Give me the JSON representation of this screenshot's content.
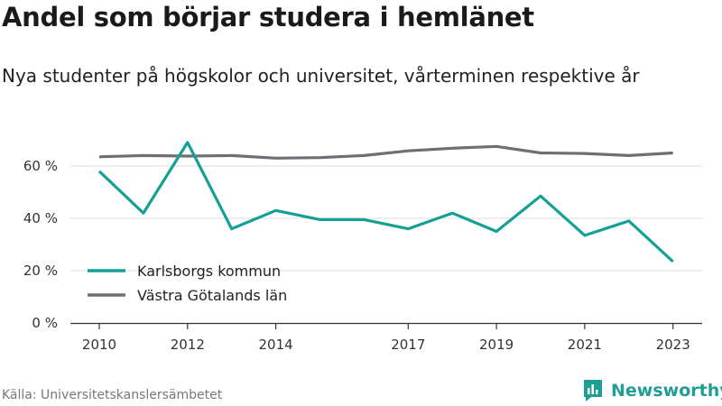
{
  "title": "Andel som börjar studera i hemlänet",
  "subtitle": "Nya studenter på högskolor och universitet, vårterminen respektive år",
  "source": "Källa: Universitetskanslersämbetet",
  "brand": {
    "name": "Newsworthy",
    "icon": "newsworthy-logo-icon",
    "color": "#1f9e95"
  },
  "chart_data": {
    "type": "line",
    "x": [
      2010,
      2011,
      2012,
      2013,
      2014,
      2015,
      2016,
      2017,
      2018,
      2019,
      2020,
      2021,
      2022,
      2023
    ],
    "x_tick_labels": [
      "2010",
      "2012",
      "2014",
      "2017",
      "2019",
      "2021",
      "2023"
    ],
    "y_tick_labels": [
      "0 %",
      "20 %",
      "40 %",
      "60 %"
    ],
    "ylim": [
      0,
      70
    ],
    "grid": true,
    "legend_position": "bottom-left",
    "series": [
      {
        "name": "Karlsborgs kommun",
        "color": "#14a096",
        "values": [
          58,
          42,
          69,
          36,
          43,
          39.5,
          39.5,
          36,
          42,
          35,
          48.5,
          33.5,
          39,
          23.5
        ]
      },
      {
        "name": "Västra Götalands län",
        "color": "#6f6e74",
        "values": [
          63.5,
          64,
          63.8,
          64,
          63,
          63.2,
          64,
          65.8,
          66.8,
          67.5,
          65,
          64.8,
          64,
          65
        ]
      }
    ]
  }
}
